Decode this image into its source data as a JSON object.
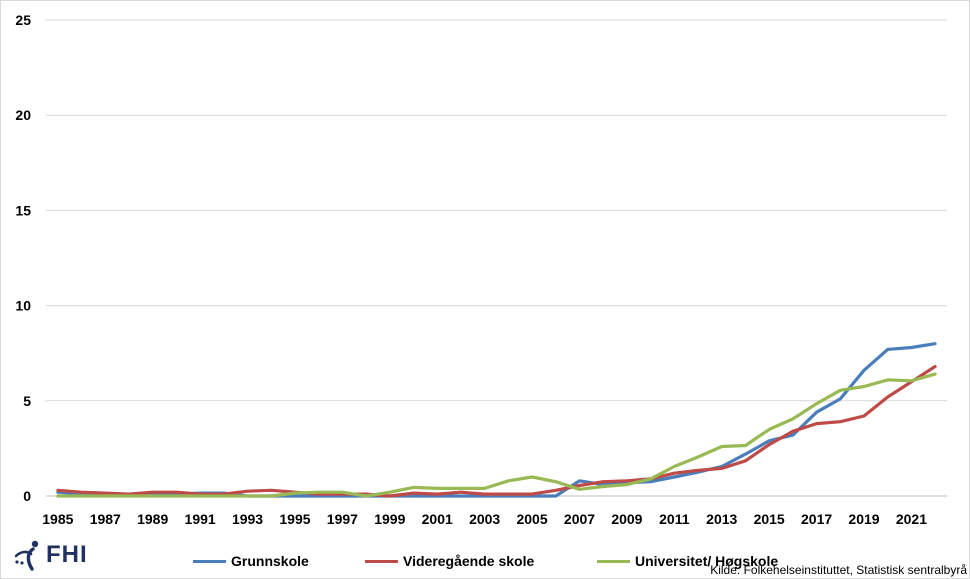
{
  "chart_data": {
    "type": "line",
    "x": [
      1985,
      1986,
      1987,
      1988,
      1989,
      1990,
      1991,
      1992,
      1993,
      1994,
      1995,
      1996,
      1997,
      1998,
      1999,
      2000,
      2001,
      2002,
      2003,
      2004,
      2005,
      2006,
      2007,
      2008,
      2009,
      2010,
      2011,
      2012,
      2013,
      2014,
      2015,
      2016,
      2017,
      2018,
      2019,
      2020,
      2021,
      2022
    ],
    "x_tick_labels": [
      "1985",
      "1987",
      "1989",
      "1991",
      "1993",
      "1995",
      "1997",
      "1999",
      "2001",
      "2003",
      "2005",
      "2007",
      "2009",
      "2011",
      "2013",
      "2015",
      "2017",
      "2019",
      "2021"
    ],
    "ylim": [
      0,
      25
    ],
    "y_ticks": [
      0,
      5,
      10,
      15,
      20,
      25
    ],
    "grid": true,
    "legend_position": "bottom",
    "series": [
      {
        "name": "Grunnskole",
        "color": "#4A7EBB",
        "values": [
          0.2,
          0.1,
          0.1,
          0.1,
          0.1,
          0.1,
          0.15,
          0.15,
          0,
          0,
          0,
          0,
          0,
          0,
          0,
          0,
          0,
          0,
          0,
          0,
          0,
          0,
          0.8,
          0.6,
          0.7,
          0.75,
          1.0,
          1.25,
          1.55,
          2.2,
          2.9,
          3.2,
          4.4,
          5.1,
          6.6,
          7.7,
          7.8,
          8.0
        ]
      },
      {
        "name": "Videregående skole",
        "color": "#BE4B48",
        "values": [
          0.3,
          0.2,
          0.15,
          0.1,
          0.2,
          0.2,
          0.1,
          0.1,
          0.25,
          0.3,
          0.2,
          0.1,
          0.1,
          0.1,
          0.0,
          0.15,
          0.1,
          0.2,
          0.1,
          0.1,
          0.1,
          0.3,
          0.55,
          0.75,
          0.8,
          0.9,
          1.2,
          1.35,
          1.45,
          1.85,
          2.7,
          3.4,
          3.8,
          3.9,
          4.2,
          5.2,
          6.0,
          6.8
        ]
      },
      {
        "name": "Universitet/ Høgskole",
        "color": "#98B954",
        "values": [
          0,
          0,
          0,
          0,
          0,
          0,
          0,
          0,
          0,
          0,
          0.15,
          0.2,
          0.2,
          0.0,
          0.2,
          0.45,
          0.4,
          0.4,
          0.4,
          0.8,
          1.0,
          0.75,
          0.35,
          0.5,
          0.6,
          0.9,
          1.55,
          2.05,
          2.6,
          2.65,
          3.5,
          4.05,
          4.85,
          5.55,
          5.75,
          6.1,
          6.05,
          6.4
        ]
      }
    ]
  },
  "logo": {
    "text": "FHI",
    "color": "#1F3262"
  },
  "source": "Kilde: Folkehelseinstituttet, Statistisk sentralbyrå"
}
